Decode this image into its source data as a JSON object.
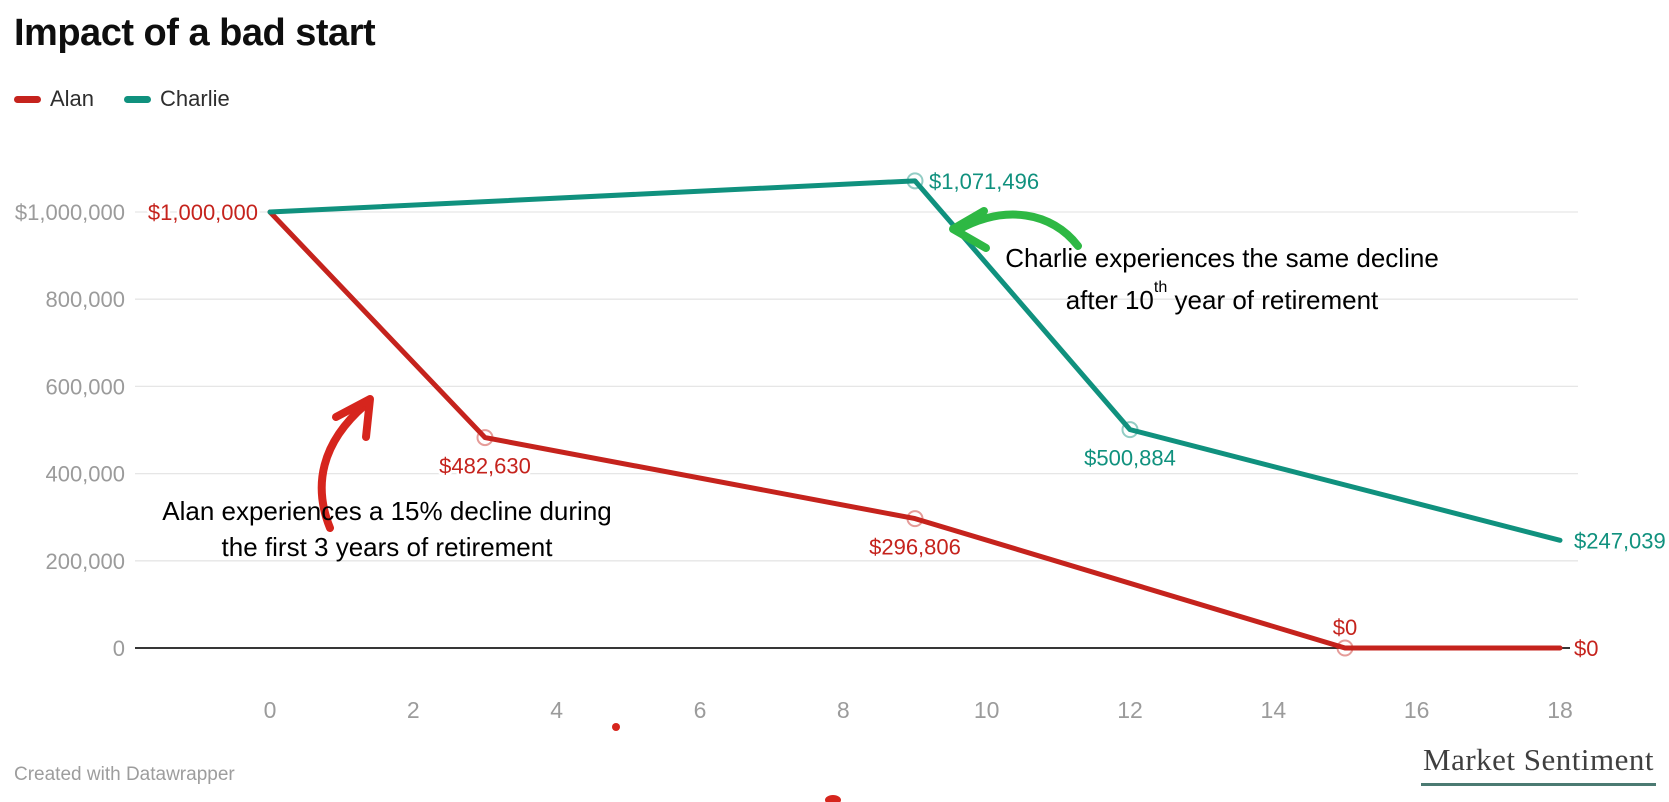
{
  "title": "Impact of a bad start",
  "legend": {
    "items": [
      {
        "label": "Alan",
        "color": "#c5231d"
      },
      {
        "label": "Charlie",
        "color": "#10917e"
      }
    ]
  },
  "annotations": {
    "alan": {
      "line1": "Alan experiences a 15% decline during",
      "line2": "the first 3 years of retirement",
      "arrow_color": "#d6251d"
    },
    "charlie": {
      "line1": "Charlie experiences the same decline",
      "line2_prefix": "after 10",
      "line2_sup": "th",
      "line2_suffix": " year of retirement",
      "arrow_color": "#2eb844"
    }
  },
  "footer": {
    "credit": "Created with Datawrapper",
    "brand": "Market Sentiment"
  },
  "colors": {
    "grid": "#e6e6e6",
    "axis": "#1a1a1a",
    "tick_text": "#9b9b9b"
  },
  "chart_data": {
    "type": "line",
    "title": "Impact of a bad start",
    "xlabel": "",
    "ylabel": "",
    "xlim": [
      0,
      18
    ],
    "ylim": [
      0,
      1100000
    ],
    "grid": "horizontal",
    "legend_position": "top-left",
    "x_ticks": [
      0,
      2,
      4,
      6,
      8,
      10,
      12,
      14,
      16,
      18
    ],
    "y_ticks": [
      {
        "value": 1000000,
        "label": "$1,000,000"
      },
      {
        "value": 800000,
        "label": "800,000"
      },
      {
        "value": 600000,
        "label": "600,000"
      },
      {
        "value": 400000,
        "label": "400,000"
      },
      {
        "value": 200000,
        "label": "200,000"
      },
      {
        "value": 0,
        "label": "0"
      }
    ],
    "series": [
      {
        "name": "Alan",
        "color": "#c5231d",
        "points": [
          {
            "year": 0,
            "value": 1000000,
            "label": "$1,000,000",
            "marker": false,
            "label_pos": "left"
          },
          {
            "year": 3,
            "value": 482630,
            "label": "$482,630",
            "marker": true,
            "label_pos": "below"
          },
          {
            "year": 9,
            "value": 296806,
            "label": "$296,806",
            "marker": true,
            "label_pos": "below"
          },
          {
            "year": 15,
            "value": 0,
            "label": "$0",
            "marker": true,
            "label_pos": "above"
          },
          {
            "year": 18,
            "value": 0,
            "label": "$0",
            "marker": false,
            "label_pos": "right"
          }
        ]
      },
      {
        "name": "Charlie",
        "color": "#10917e",
        "points": [
          {
            "year": 0,
            "value": 1000000,
            "label": "",
            "marker": false
          },
          {
            "year": 9,
            "value": 1071496,
            "label": "$1,071,496",
            "marker": true,
            "label_pos": "right"
          },
          {
            "year": 12,
            "value": 500884,
            "label": "$500,884",
            "marker": true,
            "label_pos": "below"
          },
          {
            "year": 18,
            "value": 247039,
            "label": "$247,039",
            "marker": false,
            "label_pos": "right"
          }
        ]
      }
    ]
  }
}
